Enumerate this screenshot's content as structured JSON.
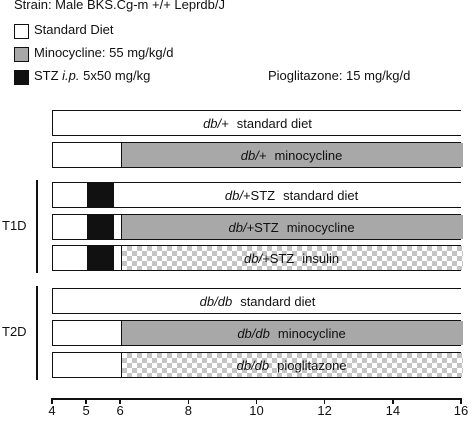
{
  "header": {
    "strain": "Strain: Male BKS.Cg-m +/+ Leprdb/J"
  },
  "legend": [
    {
      "swatch": "white",
      "label": "Standard Diet"
    },
    {
      "swatch": "gray",
      "label": "Minocycline: 55 mg/kg/d"
    },
    {
      "swatch": "black",
      "label_prefix": "STZ ",
      "label_italic": "i.p.",
      "label_suffix": " 5x50 mg/kg"
    }
  ],
  "pioglitazone_note": "Pioglitazone: 15 mg/kg/d",
  "bars": [
    {
      "genotype": "db/+",
      "extra": "",
      "treatment": "standard diet",
      "segments": [
        {
          "type": "white",
          "from": 4,
          "to": 16
        }
      ]
    },
    {
      "genotype": "db/+",
      "extra": "",
      "treatment": "minocycline",
      "segments": [
        {
          "type": "white",
          "from": 4,
          "to": 6
        },
        {
          "type": "gray",
          "from": 6,
          "to": 16
        }
      ]
    },
    {
      "genotype": "db/+",
      "extra": "STZ",
      "treatment": "standard diet",
      "segments": [
        {
          "type": "white",
          "from": 4,
          "to": 5
        },
        {
          "type": "black",
          "from": 5,
          "to": 5.8
        },
        {
          "type": "white",
          "from": 5.8,
          "to": 16
        }
      ]
    },
    {
      "genotype": "db/+",
      "extra": "STZ",
      "treatment": "minocycline",
      "segments": [
        {
          "type": "white",
          "from": 4,
          "to": 5
        },
        {
          "type": "black",
          "from": 5,
          "to": 5.8
        },
        {
          "type": "white",
          "from": 5.8,
          "to": 6
        },
        {
          "type": "gray",
          "from": 6,
          "to": 16
        }
      ]
    },
    {
      "genotype": "db/+",
      "extra": "STZ",
      "treatment": "insulin",
      "segments": [
        {
          "type": "white",
          "from": 4,
          "to": 5
        },
        {
          "type": "black",
          "from": 5,
          "to": 5.8
        },
        {
          "type": "white",
          "from": 5.8,
          "to": 6
        },
        {
          "type": "check",
          "from": 6,
          "to": 16
        }
      ]
    },
    {
      "genotype": "db/db",
      "extra": "",
      "treatment": "standard diet",
      "segments": [
        {
          "type": "white",
          "from": 4,
          "to": 16
        }
      ]
    },
    {
      "genotype": "db/db",
      "extra": "",
      "treatment": "minocycline",
      "segments": [
        {
          "type": "white",
          "from": 4,
          "to": 6
        },
        {
          "type": "gray",
          "from": 6,
          "to": 16
        }
      ]
    },
    {
      "genotype": "db/db",
      "extra": "",
      "treatment": "pioglitazone",
      "segments": [
        {
          "type": "white",
          "from": 4,
          "to": 6
        },
        {
          "type": "check",
          "from": 6,
          "to": 16
        }
      ]
    }
  ],
  "groups": [
    {
      "label": "T1D",
      "bars": [
        2,
        4
      ]
    },
    {
      "label": "T2D",
      "bars": [
        5,
        7
      ]
    }
  ],
  "axis": {
    "min": 4,
    "max": 16,
    "ticks": [
      4,
      5,
      6,
      8,
      10,
      12,
      14,
      16
    ],
    "tick_labels": [
      "4",
      "5",
      "6",
      "8",
      "10",
      "12",
      "14",
      "16"
    ]
  }
}
